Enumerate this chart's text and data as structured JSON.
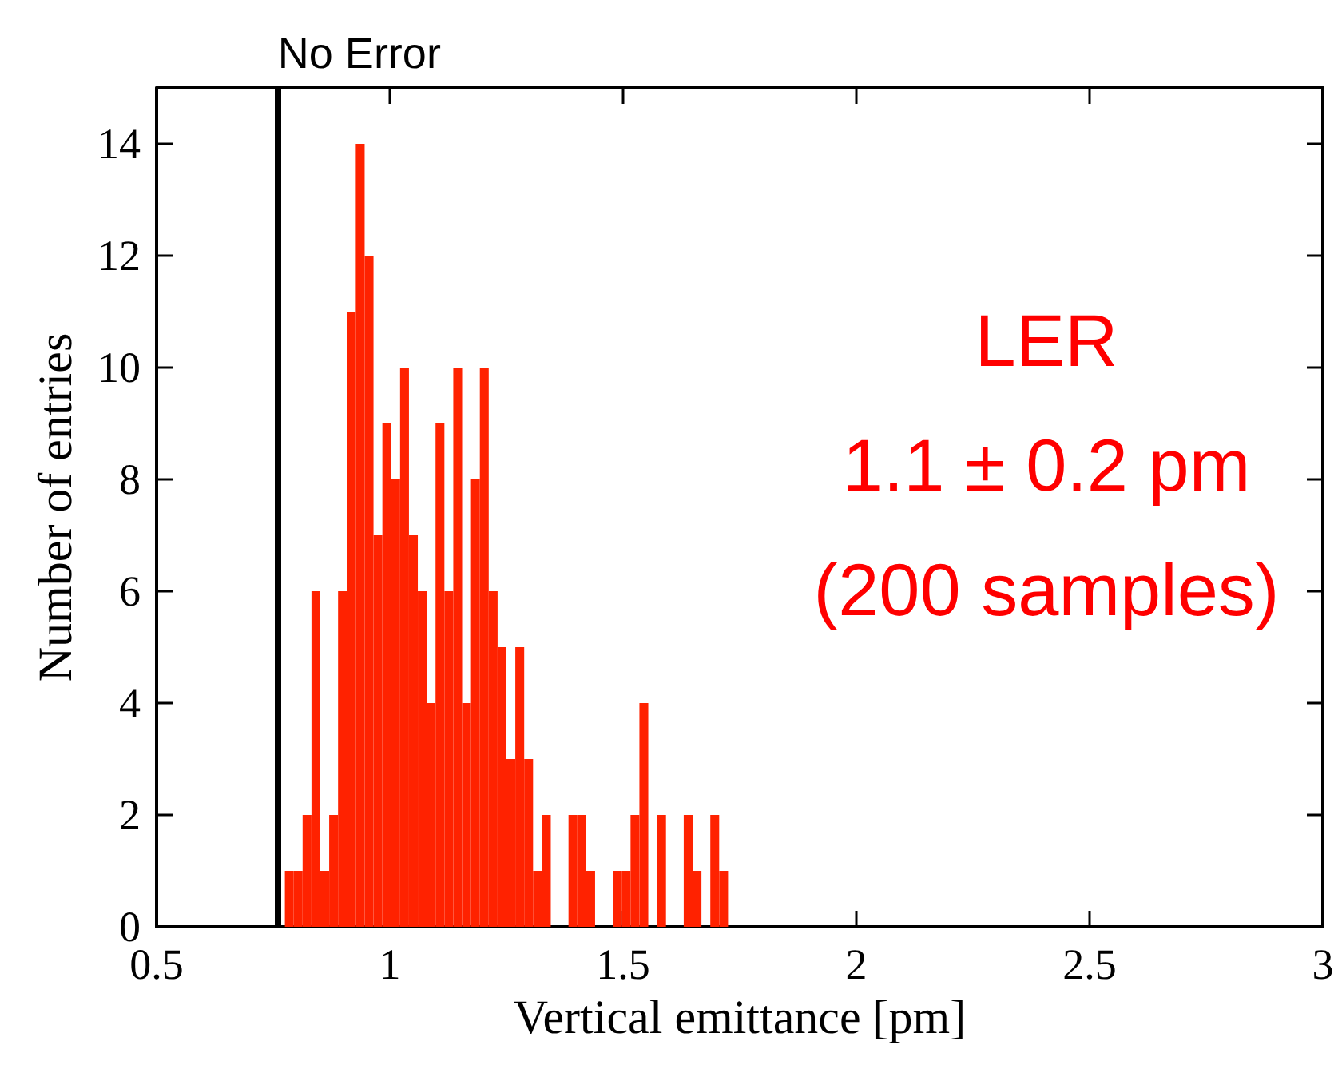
{
  "chart_data": {
    "type": "histogram",
    "xlabel": "Vertical emittance [pm]",
    "ylabel": "Number of entries",
    "bins": [
      0.775,
      0.794,
      0.813,
      0.832,
      0.851,
      0.87,
      0.889,
      0.908,
      0.927,
      0.946,
      0.965,
      0.984,
      1.003,
      1.022,
      1.041,
      1.06,
      1.079,
      1.098,
      1.117,
      1.136,
      1.155,
      1.174,
      1.193,
      1.212,
      1.231,
      1.25,
      1.269,
      1.288,
      1.307,
      1.326,
      1.345,
      1.364,
      1.383,
      1.402,
      1.421,
      1.44,
      1.459,
      1.478,
      1.497,
      1.516,
      1.535,
      1.554,
      1.573,
      1.592,
      1.611,
      1.63,
      1.649,
      1.668,
      1.687,
      1.706,
      1.725
    ],
    "values": [
      1,
      1,
      2,
      6,
      1,
      2,
      6,
      11,
      14,
      12,
      7,
      9,
      8,
      10,
      7,
      6,
      4,
      9,
      6,
      10,
      4,
      8,
      10,
      6,
      5,
      3,
      5,
      3,
      1,
      2,
      0,
      0,
      2,
      2,
      1,
      0,
      0,
      1,
      1,
      2,
      4,
      0,
      2,
      0,
      0,
      2,
      1,
      0,
      2,
      1
    ],
    "color": "#ff2200",
    "xlim": [
      0.5,
      3
    ],
    "xticks": [
      0.5,
      1,
      1.5,
      2,
      2.5,
      3
    ],
    "ylim": [
      0,
      15
    ],
    "yticks": [
      0,
      2,
      4,
      6,
      8,
      10,
      12,
      14
    ],
    "ref_lines": [
      {
        "axis": "x",
        "value": 0.76,
        "label": "No Error",
        "color": "#000000"
      }
    ],
    "annotations": [
      "LER",
      "1.1 ± 0.2 pm",
      "(200 samples)"
    ],
    "grid": false
  }
}
